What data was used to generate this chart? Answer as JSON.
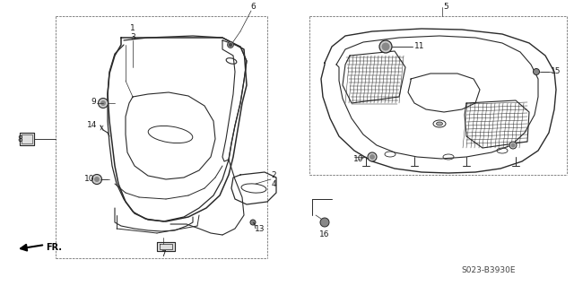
{
  "bg_color": "#ffffff",
  "line_color": "#2a2a2a",
  "diagram_code": "S023-B3930E",
  "label_color": "#1a1a1a",
  "dashed_color": "#555555"
}
